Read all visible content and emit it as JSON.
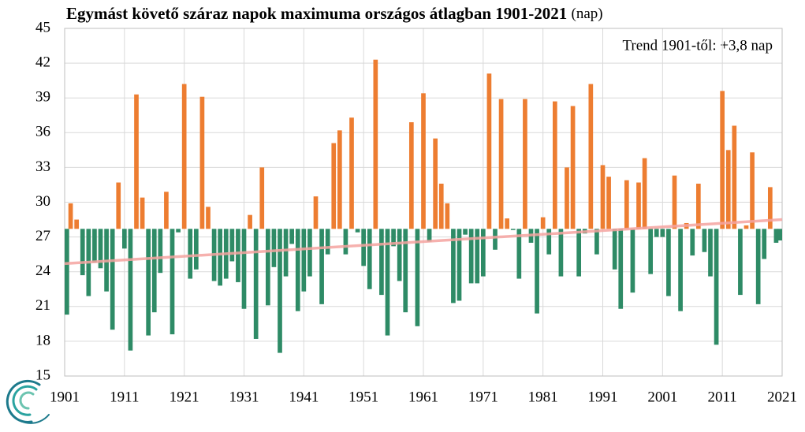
{
  "chart_data": {
    "type": "bar",
    "title": "Egymást követő száraz napok maximuma országos átlagban 1901-2021",
    "title_unit": "(nap)",
    "annotation": "Trend 1901-től: +3,8 nap",
    "x": [
      1901,
      1902,
      1903,
      1904,
      1905,
      1906,
      1907,
      1908,
      1909,
      1910,
      1911,
      1912,
      1913,
      1914,
      1915,
      1916,
      1917,
      1918,
      1919,
      1920,
      1921,
      1922,
      1923,
      1924,
      1925,
      1926,
      1927,
      1928,
      1929,
      1930,
      1931,
      1932,
      1933,
      1934,
      1935,
      1936,
      1937,
      1938,
      1939,
      1940,
      1941,
      1942,
      1943,
      1944,
      1945,
      1946,
      1947,
      1948,
      1949,
      1950,
      1951,
      1952,
      1953,
      1954,
      1955,
      1956,
      1957,
      1958,
      1959,
      1960,
      1961,
      1962,
      1963,
      1964,
      1965,
      1966,
      1967,
      1968,
      1969,
      1970,
      1971,
      1972,
      1973,
      1974,
      1975,
      1976,
      1977,
      1978,
      1979,
      1980,
      1981,
      1982,
      1983,
      1984,
      1985,
      1986,
      1987,
      1988,
      1989,
      1990,
      1991,
      1992,
      1993,
      1994,
      1995,
      1996,
      1997,
      1998,
      1999,
      2000,
      2001,
      2002,
      2003,
      2004,
      2005,
      2006,
      2007,
      2008,
      2009,
      2010,
      2011,
      2012,
      2013,
      2014,
      2015,
      2016,
      2017,
      2018,
      2019,
      2020,
      2021
    ],
    "values": [
      20.3,
      29.9,
      28.5,
      23.7,
      21.9,
      24.8,
      24.3,
      22.3,
      19.0,
      31.7,
      26.0,
      17.2,
      39.3,
      30.4,
      18.5,
      20.5,
      23.9,
      30.9,
      18.6,
      27.4,
      40.2,
      23.4,
      24.2,
      39.1,
      29.6,
      23.2,
      22.8,
      23.4,
      24.9,
      23.1,
      20.8,
      28.9,
      18.2,
      33.0,
      21.1,
      24.4,
      17.0,
      23.6,
      26.4,
      20.6,
      22.3,
      23.6,
      30.5,
      21.2,
      25.5,
      35.1,
      36.2,
      25.5,
      37.3,
      27.4,
      24.5,
      22.5,
      42.3,
      22.0,
      18.5,
      26.2,
      23.2,
      20.5,
      36.9,
      19.3,
      39.4,
      26.6,
      35.5,
      31.6,
      29.9,
      21.3,
      21.5,
      27.2,
      23.0,
      23.0,
      23.6,
      41.1,
      25.9,
      38.9,
      28.6,
      27.6,
      23.4,
      38.9,
      26.5,
      20.4,
      28.7,
      25.5,
      38.7,
      23.6,
      33.0,
      38.3,
      23.6,
      27.3,
      40.2,
      25.5,
      33.2,
      32.2,
      24.2,
      20.8,
      31.9,
      22.2,
      31.7,
      33.8,
      23.8,
      27.0,
      27.0,
      21.9,
      32.3,
      20.6,
      28.2,
      25.4,
      31.6,
      25.7,
      23.6,
      17.7,
      39.6,
      34.5,
      36.6,
      22.0,
      28.0,
      34.3,
      21.2,
      25.1,
      31.3,
      26.5,
      26.7
    ],
    "baseline": 27.7,
    "color_above": "#ed7d31",
    "color_below": "#2e8b66",
    "trend": {
      "x": [
        1901,
        2021
      ],
      "values": [
        24.7,
        28.5
      ],
      "color": "#f4a3a0"
    },
    "xlim": [
      1901,
      2021
    ],
    "xticks": [
      1901,
      1911,
      1921,
      1931,
      1941,
      1951,
      1961,
      1971,
      1981,
      1991,
      2001,
      2011,
      2021
    ],
    "ylim": [
      15,
      45
    ],
    "yticks": [
      15,
      18,
      21,
      24,
      27,
      30,
      33,
      36,
      39,
      42,
      45
    ],
    "grid": true
  }
}
